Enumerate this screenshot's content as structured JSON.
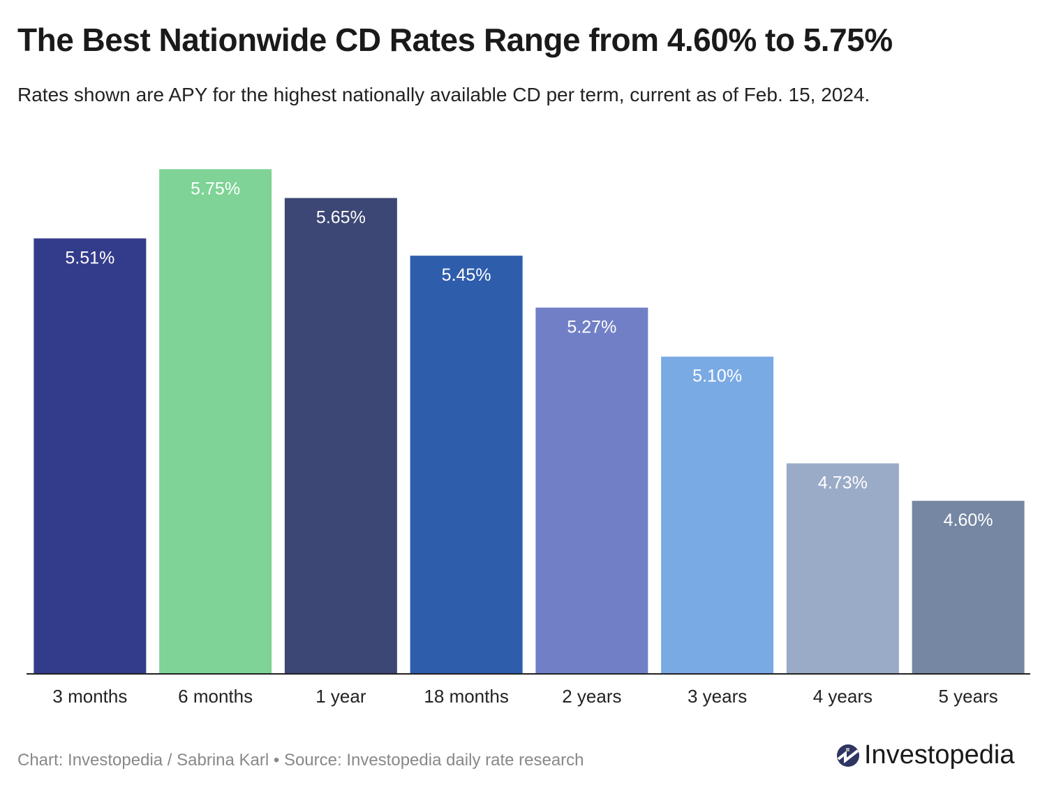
{
  "chart_data": {
    "type": "bar",
    "title": "The Best Nationwide CD Rates Range from 4.60% to 5.75%",
    "subtitle": "Rates shown are APY for the highest nationally available CD per term, current as of Feb. 15, 2024.",
    "categories": [
      "3 months",
      "6 months",
      "1 year",
      "18 months",
      "2 years",
      "3 years",
      "4 years",
      "5 years"
    ],
    "values": [
      5.51,
      5.75,
      5.65,
      5.45,
      5.27,
      5.1,
      4.73,
      4.6
    ],
    "labels": [
      "5.51%",
      "5.75%",
      "5.65%",
      "5.45%",
      "5.27%",
      "5.10%",
      "4.73%",
      "4.60%"
    ],
    "colors": [
      "#333c8a",
      "#7fd396",
      "#3c4775",
      "#2e5dac",
      "#7180c6",
      "#7aaae4",
      "#9aabc7",
      "#7687a3"
    ],
    "xlabel": "",
    "ylabel": "",
    "ylim": [
      4.0,
      5.75
    ],
    "grid": false,
    "unit": "% APY"
  },
  "footer": "Chart: Investopedia / Sabrina Karl • Source: Investopedia daily rate research",
  "logo": {
    "text": "Investopedia",
    "icon": "investopedia-logo-icon"
  }
}
